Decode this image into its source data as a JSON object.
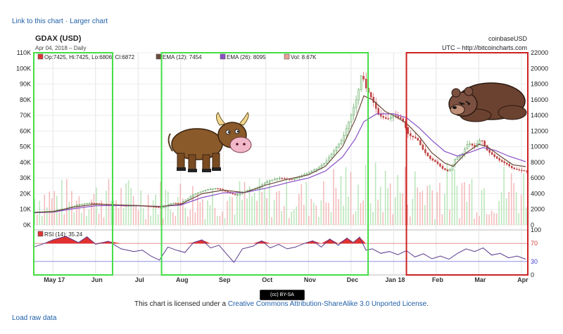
{
  "links": {
    "link_to_chart": "Link to this chart",
    "separator": "·",
    "larger_chart": "Larger chart",
    "load_raw": "Load raw data"
  },
  "license": {
    "badge": "(cc) BY-SA",
    "prefix": "This chart is licensed under a ",
    "link": "Creative Commons Attribution-ShareAlike 3.0 Unported License",
    "suffix": "."
  },
  "colors": {
    "green_box": "#44dd44",
    "red_box": "#cc2222",
    "ema12": "#6b4a3a",
    "ema26": "#8a4fc8",
    "vol_up": "#9fdd9f",
    "vol_down": "#f0a0a0",
    "rsi": "#5a3a8c",
    "rsi_fill": "#e03030"
  },
  "icons": {
    "bull": "bull-cartoon-icon",
    "bear": "bear-cartoon-icon"
  },
  "chart_data": {
    "type": "line",
    "title": "GDAX (USD)",
    "subtitle": "Apr 04, 2018 – Daily",
    "source_left": "coinbaseUSD",
    "source_right": "UTC – http://bitcoincharts.com",
    "legend": {
      "ohlc": "Op:7425, Hi:7425, Lo:6806, Cl:6872",
      "ema12": "EMA (12): 7454",
      "ema26": "EMA (26): 8095",
      "vol": "Vol: 8.67K"
    },
    "rsi_label": "RSI (14): 35.24",
    "y_left_ticks": [
      "110K",
      "100K",
      "90K",
      "80K",
      "70K",
      "60K",
      "50K",
      "40K",
      "30K",
      "20K",
      "10K",
      "0K"
    ],
    "y_right_ticks": [
      "22000",
      "20000",
      "18000",
      "16000",
      "14000",
      "12000",
      "10000",
      "8000",
      "6000",
      "4000",
      "2000",
      "0"
    ],
    "y_right_range": [
      0,
      22000
    ],
    "rsi_ticks": [
      "100",
      "70",
      "30",
      "0"
    ],
    "x_ticks": [
      "May 17",
      "Jun",
      "Jul",
      "Aug",
      "Sep",
      "Oct",
      "Nov",
      "Dec",
      "Jan 18",
      "Feb",
      "Mar",
      "Apr"
    ],
    "x_tick_months": [
      0,
      1,
      2,
      3,
      4,
      5,
      6,
      7,
      8,
      9,
      10,
      11
    ],
    "x_range_months": [
      -0.45,
      11.15
    ],
    "price_points": [
      [
        -0.45,
        1650
      ],
      [
        0.0,
        1800
      ],
      [
        0.3,
        2100
      ],
      [
        0.6,
        2600
      ],
      [
        0.85,
        2800
      ],
      [
        1.1,
        2700
      ],
      [
        1.4,
        2550
      ],
      [
        1.7,
        2450
      ],
      [
        2.0,
        2500
      ],
      [
        2.3,
        2350
      ],
      [
        2.55,
        2200
      ],
      [
        2.8,
        2800
      ],
      [
        3.0,
        2750
      ],
      [
        3.3,
        3900
      ],
      [
        3.6,
        4500
      ],
      [
        3.85,
        4700
      ],
      [
        4.0,
        4400
      ],
      [
        4.3,
        3800
      ],
      [
        4.5,
        4300
      ],
      [
        4.8,
        4700
      ],
      [
        5.0,
        5500
      ],
      [
        5.3,
        6000
      ],
      [
        5.6,
        5800
      ],
      [
        5.85,
        6300
      ],
      [
        6.0,
        6700
      ],
      [
        6.2,
        7200
      ],
      [
        6.4,
        8000
      ],
      [
        6.6,
        9500
      ],
      [
        6.8,
        11000
      ],
      [
        7.0,
        14000
      ],
      [
        7.15,
        16500
      ],
      [
        7.25,
        19500
      ],
      [
        7.35,
        17500
      ],
      [
        7.5,
        16000
      ],
      [
        7.65,
        14000
      ],
      [
        7.85,
        13500
      ],
      [
        8.0,
        14000
      ],
      [
        8.2,
        13500
      ],
      [
        8.35,
        11500
      ],
      [
        8.55,
        11000
      ],
      [
        8.7,
        9500
      ],
      [
        8.85,
        8500
      ],
      [
        9.0,
        8000
      ],
      [
        9.15,
        7200
      ],
      [
        9.3,
        6800
      ],
      [
        9.45,
        8500
      ],
      [
        9.6,
        9000
      ],
      [
        9.75,
        10500
      ],
      [
        9.9,
        10000
      ],
      [
        10.05,
        11000
      ],
      [
        10.2,
        9500
      ],
      [
        10.35,
        8800
      ],
      [
        10.5,
        8200
      ],
      [
        10.65,
        7800
      ],
      [
        10.8,
        7200
      ],
      [
        10.95,
        7000
      ],
      [
        11.1,
        6900
      ]
    ],
    "ema12_points": [
      [
        -0.45,
        1600
      ],
      [
        0.0,
        1700
      ],
      [
        0.5,
        2300
      ],
      [
        1.0,
        2650
      ],
      [
        1.5,
        2580
      ],
      [
        2.0,
        2480
      ],
      [
        2.5,
        2350
      ],
      [
        3.0,
        2650
      ],
      [
        3.5,
        4000
      ],
      [
        4.0,
        4450
      ],
      [
        4.5,
        4150
      ],
      [
        5.0,
        5100
      ],
      [
        5.5,
        5850
      ],
      [
        6.0,
        6400
      ],
      [
        6.4,
        7500
      ],
      [
        6.8,
        10000
      ],
      [
        7.1,
        13500
      ],
      [
        7.3,
        16500
      ],
      [
        7.5,
        16000
      ],
      [
        7.8,
        14500
      ],
      [
        8.0,
        14000
      ],
      [
        8.3,
        13000
      ],
      [
        8.6,
        11300
      ],
      [
        8.9,
        9200
      ],
      [
        9.2,
        7900
      ],
      [
        9.4,
        7500
      ],
      [
        9.7,
        9200
      ],
      [
        10.0,
        10300
      ],
      [
        10.2,
        10000
      ],
      [
        10.5,
        8800
      ],
      [
        10.8,
        7700
      ],
      [
        11.1,
        7450
      ]
    ],
    "ema26_points": [
      [
        -0.45,
        1550
      ],
      [
        0.0,
        1650
      ],
      [
        0.5,
        2100
      ],
      [
        1.0,
        2450
      ],
      [
        1.5,
        2500
      ],
      [
        2.0,
        2450
      ],
      [
        2.5,
        2380
      ],
      [
        3.0,
        2550
      ],
      [
        3.5,
        3500
      ],
      [
        4.0,
        4100
      ],
      [
        4.5,
        4150
      ],
      [
        5.0,
        4700
      ],
      [
        5.5,
        5400
      ],
      [
        6.0,
        6000
      ],
      [
        6.4,
        6900
      ],
      [
        6.8,
        8700
      ],
      [
        7.1,
        11000
      ],
      [
        7.3,
        13200
      ],
      [
        7.6,
        14200
      ],
      [
        8.0,
        14200
      ],
      [
        8.3,
        13700
      ],
      [
        8.6,
        12400
      ],
      [
        8.9,
        10800
      ],
      [
        9.2,
        9400
      ],
      [
        9.5,
        8800
      ],
      [
        9.8,
        9300
      ],
      [
        10.1,
        9900
      ],
      [
        10.4,
        9500
      ],
      [
        10.7,
        8800
      ],
      [
        11.1,
        8095
      ]
    ],
    "rsi_points": [
      [
        -0.45,
        62
      ],
      [
        -0.2,
        70
      ],
      [
        0.0,
        78
      ],
      [
        0.3,
        86
      ],
      [
        0.6,
        72
      ],
      [
        0.8,
        85
      ],
      [
        1.0,
        68
      ],
      [
        1.3,
        75
      ],
      [
        1.6,
        58
      ],
      [
        1.9,
        52
      ],
      [
        2.1,
        55
      ],
      [
        2.3,
        42
      ],
      [
        2.5,
        33
      ],
      [
        2.7,
        62
      ],
      [
        2.9,
        55
      ],
      [
        3.1,
        50
      ],
      [
        3.3,
        72
      ],
      [
        3.5,
        78
      ],
      [
        3.7,
        60
      ],
      [
        3.9,
        66
      ],
      [
        4.1,
        44
      ],
      [
        4.25,
        28
      ],
      [
        4.45,
        58
      ],
      [
        4.7,
        64
      ],
      [
        4.9,
        76
      ],
      [
        5.1,
        60
      ],
      [
        5.3,
        68
      ],
      [
        5.5,
        58
      ],
      [
        5.7,
        62
      ],
      [
        5.9,
        70
      ],
      [
        6.1,
        76
      ],
      [
        6.3,
        62
      ],
      [
        6.5,
        80
      ],
      [
        6.7,
        66
      ],
      [
        6.9,
        82
      ],
      [
        7.05,
        72
      ],
      [
        7.2,
        84
      ],
      [
        7.35,
        55
      ],
      [
        7.5,
        58
      ],
      [
        7.7,
        48
      ],
      [
        7.9,
        52
      ],
      [
        8.1,
        45
      ],
      [
        8.3,
        54
      ],
      [
        8.5,
        40
      ],
      [
        8.7,
        47
      ],
      [
        8.9,
        36
      ],
      [
        9.1,
        42
      ],
      [
        9.3,
        35
      ],
      [
        9.5,
        48
      ],
      [
        9.7,
        58
      ],
      [
        9.9,
        52
      ],
      [
        10.1,
        60
      ],
      [
        10.3,
        44
      ],
      [
        10.5,
        48
      ],
      [
        10.7,
        38
      ],
      [
        10.9,
        42
      ],
      [
        11.1,
        35
      ]
    ],
    "annotation_boxes": [
      {
        "name": "bull-box-1",
        "color": "green",
        "x": [
          -0.45,
          1.4
        ]
      },
      {
        "name": "bull-box-2",
        "color": "green",
        "x": [
          2.55,
          7.4
        ]
      },
      {
        "name": "bear-box",
        "color": "red",
        "x": [
          8.3,
          11.15
        ]
      }
    ]
  }
}
